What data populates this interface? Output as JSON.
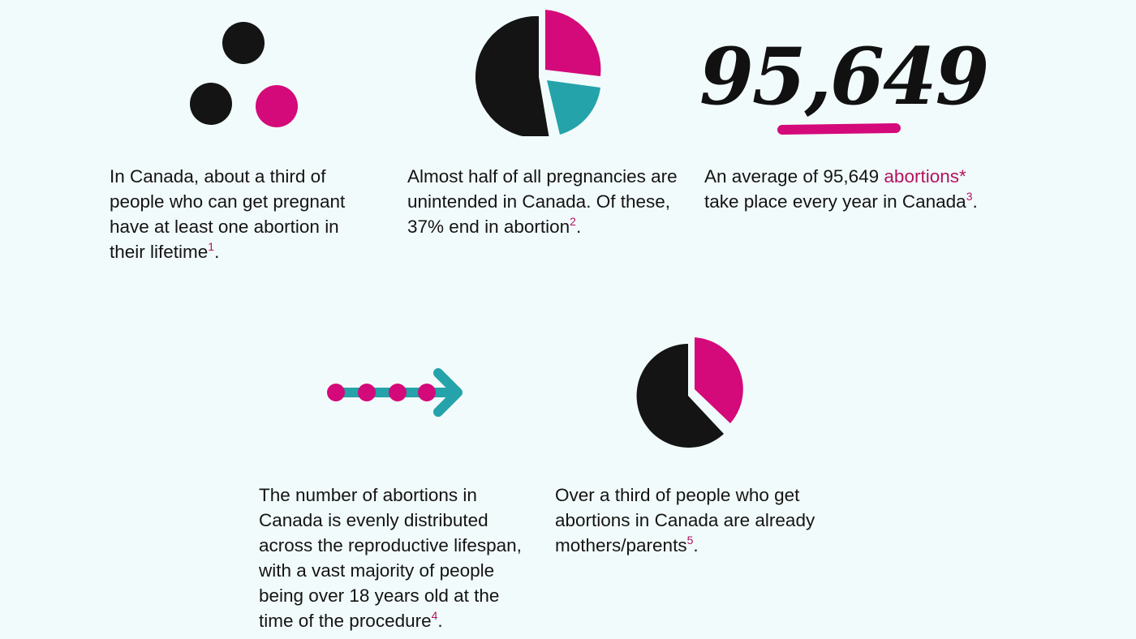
{
  "colors": {
    "background": "#f2fbfb",
    "black": "#141414",
    "magenta": "#d4097a",
    "teal": "#24a3aa",
    "footnote": "#b3135f"
  },
  "stats": [
    {
      "graphic": "three-dots-icon",
      "text": "In Canada, about a third of people who can get pregnant have at least one abortion in their lifetime",
      "footnote": "1",
      "end": "."
    },
    {
      "graphic": "pie-chart-icon",
      "text": "Almost half of all pregnancies are unintended in Canada. Of these, 37% end in abortion",
      "footnote": "2",
      "end": "."
    },
    {
      "graphic": "big-number",
      "number": "95,649",
      "text_before": "An average of 95,649 ",
      "link": "abortions*",
      "text_after": " take place every year in Canada",
      "footnote": "3",
      "end": "."
    },
    {
      "graphic": "arrow-timeline-icon",
      "text": "The number of abortions in Canada is evenly distributed across the reproductive lifespan, with a vast majority of people being over 18 years old at the time of the procedure",
      "footnote": "4",
      "end": "."
    },
    {
      "graphic": "pie-chart-icon",
      "text": "Over a third of people who get abortions in Canada are already mothers/parents",
      "footnote": "5",
      "end": "."
    }
  ]
}
